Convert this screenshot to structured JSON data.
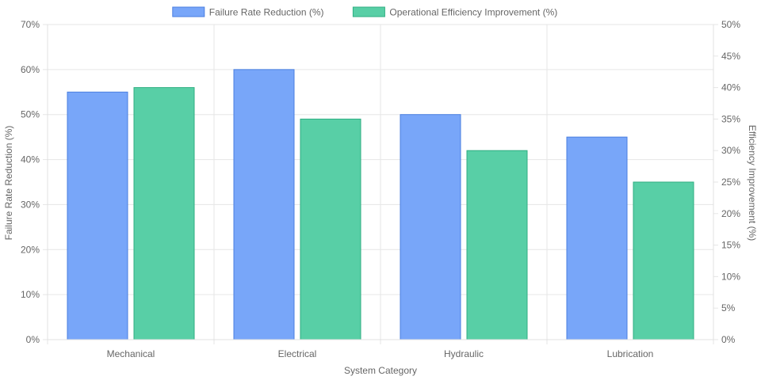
{
  "chart_data": {
    "type": "bar",
    "categories": [
      "Mechanical",
      "Electrical",
      "Hydraulic",
      "Lubrication"
    ],
    "series": [
      {
        "name": "Failure Rate Reduction (%)",
        "values": [
          55,
          60,
          50,
          45
        ],
        "axis": "left",
        "color": "#78a6f9",
        "border": "#4a7fe0"
      },
      {
        "name": "Operational Efficiency Improvement (%)",
        "values": [
          40,
          35,
          30,
          25
        ],
        "axis": "right",
        "color": "#58cfa6",
        "border": "#2fae82"
      }
    ],
    "xlabel": "System Category",
    "ylabel": "Failure Rate Reduction (%)",
    "y2label": "Efficiency Improvement (%)",
    "ylim": [
      0,
      70
    ],
    "y2lim": [
      0,
      50
    ],
    "yticks": [
      "0%",
      "10%",
      "20%",
      "30%",
      "40%",
      "50%",
      "60%",
      "70%"
    ],
    "y2ticks": [
      "0%",
      "5%",
      "10%",
      "15%",
      "20%",
      "25%",
      "30%",
      "35%",
      "40%",
      "45%",
      "50%"
    ],
    "legend": "top-center",
    "grid": true
  }
}
